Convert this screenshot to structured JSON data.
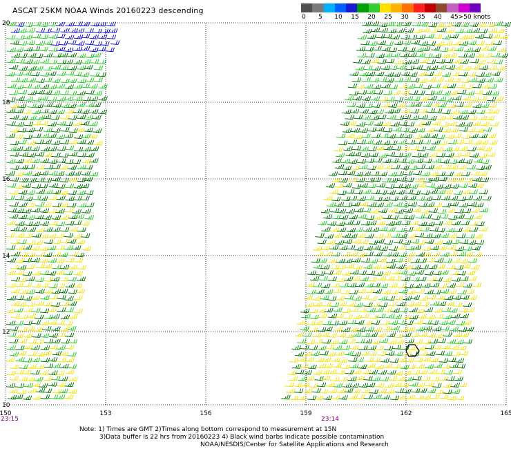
{
  "title": "ASCAT 25KM NOAA Winds 20160223 descending",
  "legend": {
    "labels": [
      "0",
      "5",
      "10",
      "15",
      "20",
      "25",
      "30",
      "35",
      "40",
      "45",
      ">50 knots"
    ],
    "colors": [
      "#505050",
      "#7a7a7a",
      "#00b0ff",
      "#0060ff",
      "#1a1ad0",
      "#00a000",
      "#33cc33",
      "#ffe000",
      "#ffb000",
      "#ff7000",
      "#ff2020",
      "#c00000",
      "#8b4a2b",
      "#c060c0",
      "#d000d0",
      "#7000c0"
    ]
  },
  "map": {
    "lon_ticks": [
      "150",
      "153",
      "156",
      "159",
      "162",
      "165"
    ],
    "lat_ticks": [
      "20",
      "18",
      "16",
      "14",
      "12",
      "10"
    ],
    "swath_times": [
      "23:15",
      "23:14"
    ],
    "wind_colors": {
      "blue": "#1010d0",
      "lightgreen": "#22cc22",
      "darkgreen": "#007700",
      "yellow": "#f2e200"
    },
    "marker": "hexagon"
  },
  "notes": [
    "Note: 1) Times are GMT 2)Times along bottom correspond to measurement at 15N",
    "3)Data buffer is 22 hrs from 20160223 4) Black wind barbs indicate possible contamination",
    "NOAA/NESDIS/Center for Satellite Applications and Research"
  ]
}
